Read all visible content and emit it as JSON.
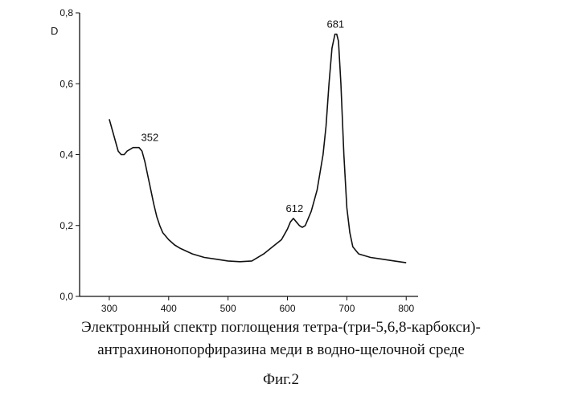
{
  "chart_data": {
    "type": "line",
    "ylabel": "D",
    "xlabel": "",
    "xlim": [
      250,
      820
    ],
    "ylim": [
      0.0,
      0.8
    ],
    "x_ticks": [
      "300",
      "400",
      "500",
      "600",
      "700",
      "800"
    ],
    "x_tick_values": [
      300,
      400,
      500,
      600,
      700,
      800
    ],
    "y_ticks": [
      "0,0",
      "0,2",
      "0,4",
      "0,6",
      "0,8"
    ],
    "y_tick_values": [
      0.0,
      0.2,
      0.4,
      0.6,
      0.8
    ],
    "grid": false,
    "series": [
      {
        "x": [
          300,
          305,
          310,
          315,
          320,
          325,
          330,
          335,
          340,
          345,
          350,
          355,
          360,
          365,
          370,
          375,
          380,
          385,
          390,
          400,
          410,
          420,
          440,
          460,
          480,
          500,
          520,
          540,
          560,
          575,
          590,
          600,
          605,
          610,
          615,
          620,
          625,
          630,
          640,
          650,
          660,
          665,
          670,
          675,
          680,
          683,
          686,
          690,
          695,
          700,
          705,
          710,
          720,
          740,
          760,
          780,
          800
        ],
        "y": [
          0.5,
          0.47,
          0.44,
          0.41,
          0.4,
          0.4,
          0.41,
          0.415,
          0.42,
          0.42,
          0.42,
          0.41,
          0.38,
          0.34,
          0.3,
          0.26,
          0.225,
          0.2,
          0.18,
          0.16,
          0.145,
          0.135,
          0.12,
          0.11,
          0.105,
          0.1,
          0.098,
          0.1,
          0.12,
          0.14,
          0.16,
          0.19,
          0.21,
          0.22,
          0.21,
          0.2,
          0.195,
          0.2,
          0.24,
          0.3,
          0.4,
          0.48,
          0.6,
          0.7,
          0.74,
          0.74,
          0.72,
          0.6,
          0.4,
          0.25,
          0.18,
          0.14,
          0.12,
          0.11,
          0.105,
          0.1,
          0.095
        ]
      }
    ],
    "annotations": [
      {
        "text": "352",
        "x": 352,
        "y": 0.42
      },
      {
        "text": "612",
        "x": 612,
        "y": 0.22
      },
      {
        "text": "681",
        "x": 681,
        "y": 0.74
      }
    ]
  },
  "caption": {
    "line1": "Электронный спектр поглощения тетра-(три-5,6,8-карбокси)-",
    "line2": "антрахинонопорфиразина меди в водно-щелочной среде",
    "figure_label": "Фиг.2"
  }
}
